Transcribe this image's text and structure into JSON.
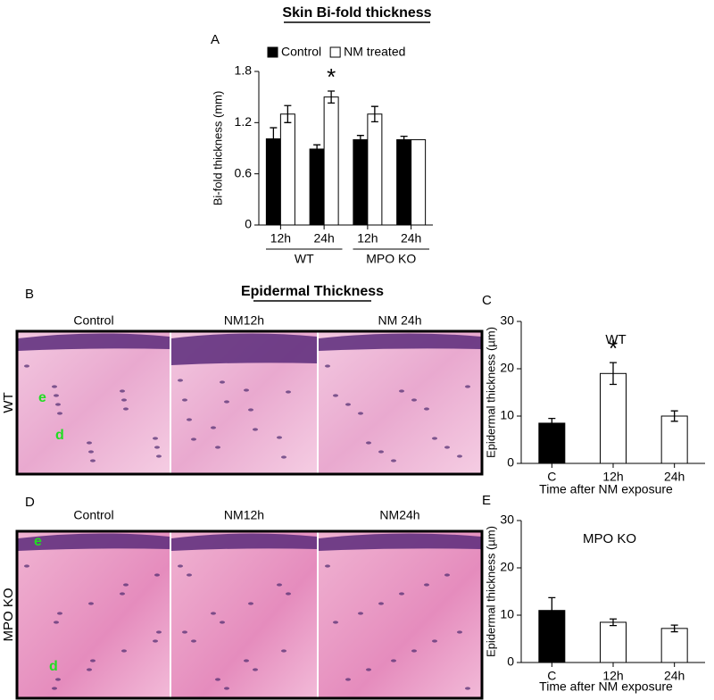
{
  "heading": {
    "title": "Epidermal Thickness"
  },
  "histology": [
    {
      "panel": "B",
      "row_label": "WT",
      "columns": [
        "Control",
        "NM12h",
        "NM 24h"
      ],
      "epidermis": "e",
      "dermis": "d"
    },
    {
      "panel": "D",
      "row_label": "MPO KO",
      "columns": [
        "Control",
        "NM12h",
        "NM24h"
      ],
      "epidermis": "e",
      "dermis": "d"
    }
  ],
  "chart_data": [
    {
      "type": "bar",
      "panel": "A",
      "title": "Skin Bi-fold thickness",
      "ylabel": "Bi-fold thickness (mm)",
      "categories": [
        "12h",
        "24h",
        "12h",
        "24h"
      ],
      "groups": [
        "WT",
        "MPO KO"
      ],
      "series": [
        {
          "name": "Control",
          "color": "#000000",
          "values": [
            1.01,
            0.89,
            1.0,
            1.0
          ],
          "errors": [
            0.13,
            0.05,
            0.05,
            0.04
          ],
          "annotations": [
            null,
            null,
            null,
            null
          ]
        },
        {
          "name": "NM treated",
          "color": "#ffffff",
          "values": [
            1.3,
            1.5,
            1.3,
            1.0
          ],
          "errors": [
            0.1,
            0.07,
            0.09,
            null
          ],
          "annotations": [
            null,
            "*",
            null,
            null
          ]
        }
      ],
      "ylim": [
        0,
        1.8
      ],
      "yticks": [
        0,
        0.6,
        1.2,
        1.8
      ],
      "legend": "top"
    },
    {
      "type": "bar",
      "panel": "C",
      "title": "WT",
      "ylabel": "Epidermal thickness (µm)",
      "xlabel": "Time after NM exposure",
      "categories": [
        "C",
        "12h",
        "24h"
      ],
      "series": [
        {
          "colors": [
            "#000000",
            "#ffffff",
            "#ffffff"
          ],
          "values": [
            8.5,
            19,
            10
          ],
          "errors": [
            1,
            2.3,
            1.1
          ],
          "annotations": [
            null,
            "*",
            null
          ]
        }
      ],
      "ylim": [
        0,
        30
      ],
      "yticks": [
        0,
        10,
        20,
        30
      ]
    },
    {
      "type": "bar",
      "panel": "E",
      "title": "MPO KO",
      "ylabel": "Epidermal thickness (µm)",
      "xlabel": "Time after NM exposure",
      "categories": [
        "C",
        "12h",
        "24h"
      ],
      "series": [
        {
          "colors": [
            "#000000",
            "#ffffff",
            "#ffffff"
          ],
          "values": [
            11,
            8.5,
            7.2
          ],
          "errors": [
            2.7,
            0.7,
            0.7
          ],
          "annotations": [
            null,
            null,
            null
          ]
        }
      ],
      "ylim": [
        0,
        30
      ],
      "yticks": [
        0,
        10,
        20,
        30
      ]
    }
  ]
}
